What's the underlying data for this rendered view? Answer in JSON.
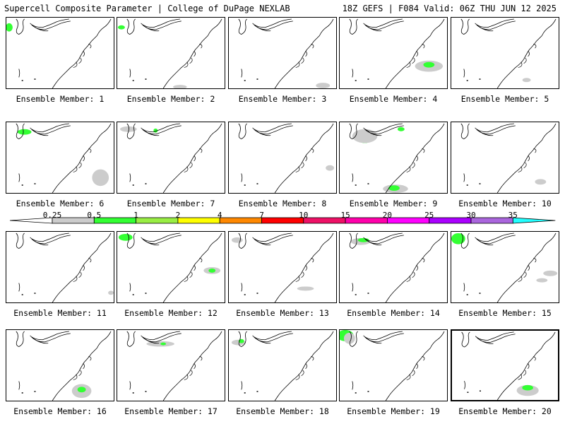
{
  "header": {
    "left": "Supercell Composite Parameter | College of DuPage NEXLAB",
    "right": "18Z GEFS | F084 Valid: 06Z THU JUN 12 2025"
  },
  "colorbar": {
    "labels": [
      "0.25",
      "0.5",
      "1",
      "2",
      "4",
      "7",
      "10",
      "15",
      "20",
      "25",
      "30",
      "35"
    ],
    "colors": [
      "#cccccc",
      "#33ff33",
      "#99ee44",
      "#ffff00",
      "#ff8800",
      "#ff0000",
      "#ee1166",
      "#ff00aa",
      "#ff00ff",
      "#aa00ff",
      "#aa66dd",
      "#22ffff"
    ],
    "low_color": "#ffffff",
    "high_color": "#22ffff"
  },
  "selected_member": 20,
  "members": [
    {
      "label": "Ensemble Member: 1"
    },
    {
      "label": "Ensemble Member: 2"
    },
    {
      "label": "Ensemble Member: 3"
    },
    {
      "label": "Ensemble Member: 4"
    },
    {
      "label": "Ensemble Member: 5"
    },
    {
      "label": "Ensemble Member: 6"
    },
    {
      "label": "Ensemble Member: 7"
    },
    {
      "label": "Ensemble Member: 8"
    },
    {
      "label": "Ensemble Member: 9"
    },
    {
      "label": "Ensemble Member: 10"
    },
    {
      "label": "Ensemble Member: 11"
    },
    {
      "label": "Ensemble Member: 12"
    },
    {
      "label": "Ensemble Member: 13"
    },
    {
      "label": "Ensemble Member: 14"
    },
    {
      "label": "Ensemble Member: 15"
    },
    {
      "label": "Ensemble Member: 16"
    },
    {
      "label": "Ensemble Member: 17"
    },
    {
      "label": "Ensemble Member: 18"
    },
    {
      "label": "Ensemble Member: 19"
    },
    {
      "label": "Ensemble Member: 20"
    }
  ]
}
